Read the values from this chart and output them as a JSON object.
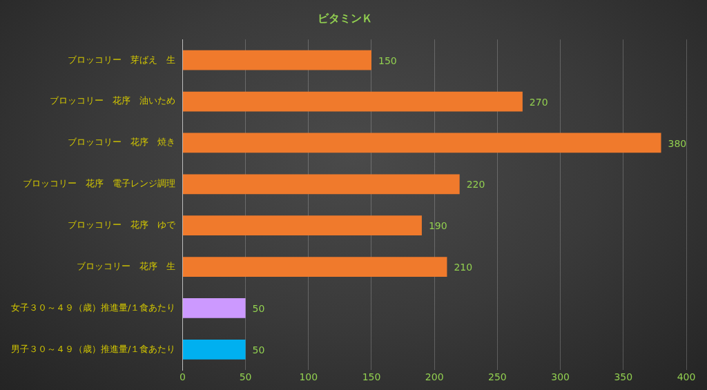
{
  "chart_data": {
    "type": "bar",
    "orientation": "horizontal",
    "title": "ビタミンＫ",
    "categories": [
      "ブロッコリー　芽ばえ　生",
      "ブロッコリー　花序　油いため",
      "ブロッコリー　花序　焼き",
      "ブロッコリー　花序　電子レンジ調理",
      "ブロッコリー　花序　ゆで",
      "ブロッコリー　花序　生",
      "女子３０～４９（歳）推進量/１食あたり",
      "男子３０～４９（歳）推進量/１食あたり"
    ],
    "values": [
      150,
      270,
      380,
      220,
      190,
      210,
      50,
      50
    ],
    "colors": [
      "#f07a2c",
      "#f07a2c",
      "#f07a2c",
      "#f07a2c",
      "#f07a2c",
      "#f07a2c",
      "#cc99ff",
      "#00b0f0"
    ],
    "xlim": [
      0,
      400
    ],
    "xticks": [
      0,
      50,
      100,
      150,
      200,
      250,
      300,
      350,
      400
    ],
    "grid": "x",
    "legend": false,
    "data_labels": true
  }
}
